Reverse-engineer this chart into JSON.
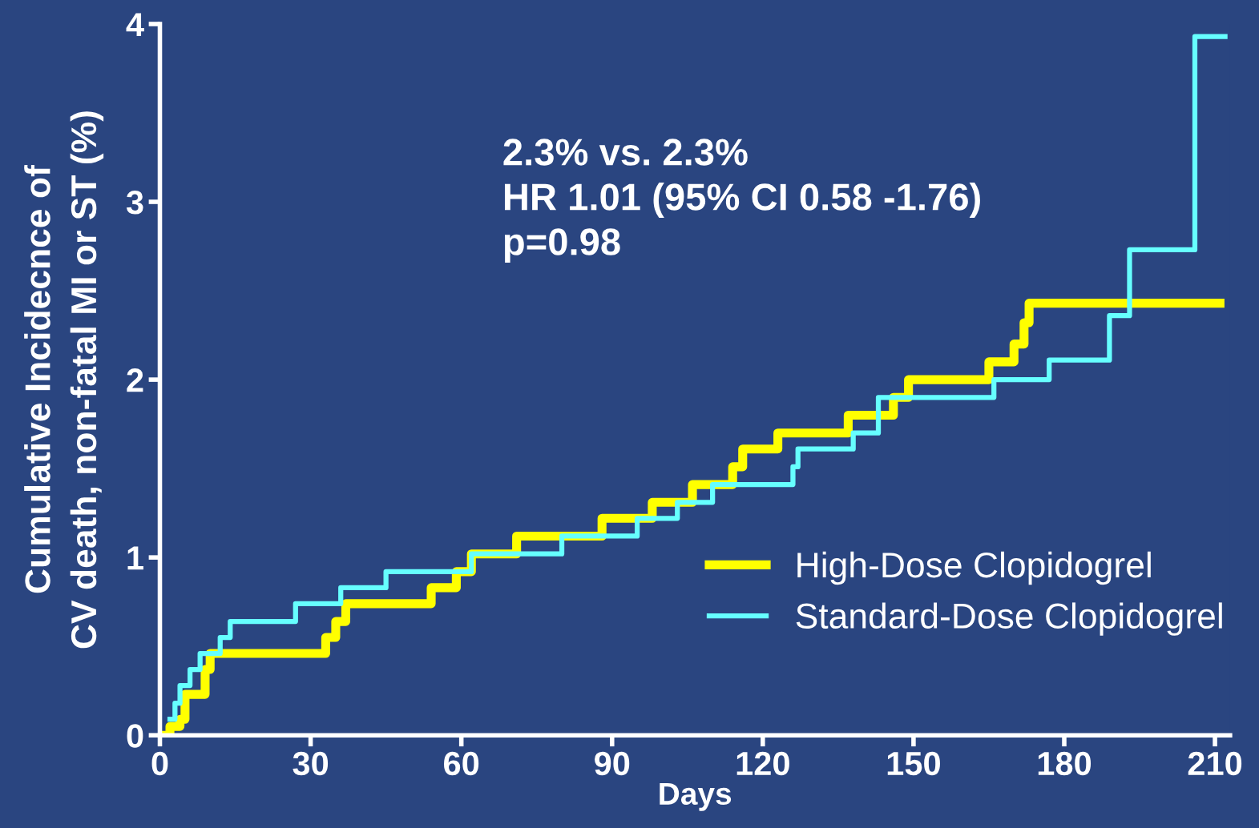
{
  "chart_data": {
    "type": "step",
    "xlabel": "Days",
    "ylabel": "Cumulative Incidecnce of\nCV death, non-fatal MI or ST (%)",
    "annotations": [
      "2.3% vs. 2.3%\nHR 1.01 (95% CI 0.58 -1.76)\np=0.98"
    ],
    "xlim": [
      0,
      213
    ],
    "ylim": [
      0,
      4
    ],
    "xticks": [
      0,
      30,
      60,
      90,
      120,
      150,
      180,
      210
    ],
    "yticks": [
      0,
      1,
      2,
      3,
      4
    ],
    "grid": false,
    "legend": "bottom right",
    "line_style": "solid",
    "marker": "none",
    "series": [
      {
        "name": "High-Dose Clopidogrel",
        "color": "#ffff00",
        "x": [
          0,
          2,
          4,
          5,
          9,
          10,
          33,
          35,
          37,
          54,
          59,
          62,
          71,
          88,
          98,
          106,
          114,
          116,
          123,
          137,
          146,
          149,
          165,
          170,
          172,
          173,
          211
        ],
        "values": [
          0,
          0.05,
          0.09,
          0.23,
          0.37,
          0.46,
          0.55,
          0.64,
          0.74,
          0.83,
          0.92,
          1.02,
          1.12,
          1.22,
          1.31,
          1.41,
          1.51,
          1.61,
          1.7,
          1.8,
          1.9,
          2.0,
          2.1,
          2.2,
          2.32,
          2.43,
          2.43
        ]
      },
      {
        "name": "Standard-Dose Clopidogrel",
        "color": "#66ffff",
        "x": [
          2,
          3,
          4,
          6,
          8,
          12,
          14,
          27,
          36,
          45,
          62,
          80,
          95,
          103,
          110,
          126,
          127,
          138,
          143,
          166,
          177,
          189,
          193,
          206,
          212
        ],
        "values": [
          0.09,
          0.18,
          0.28,
          0.37,
          0.46,
          0.55,
          0.64,
          0.74,
          0.83,
          0.92,
          1.02,
          1.12,
          1.22,
          1.31,
          1.41,
          1.51,
          1.61,
          1.7,
          1.9,
          2.0,
          2.11,
          2.36,
          2.73,
          3.93,
          3.93
        ]
      }
    ]
  }
}
